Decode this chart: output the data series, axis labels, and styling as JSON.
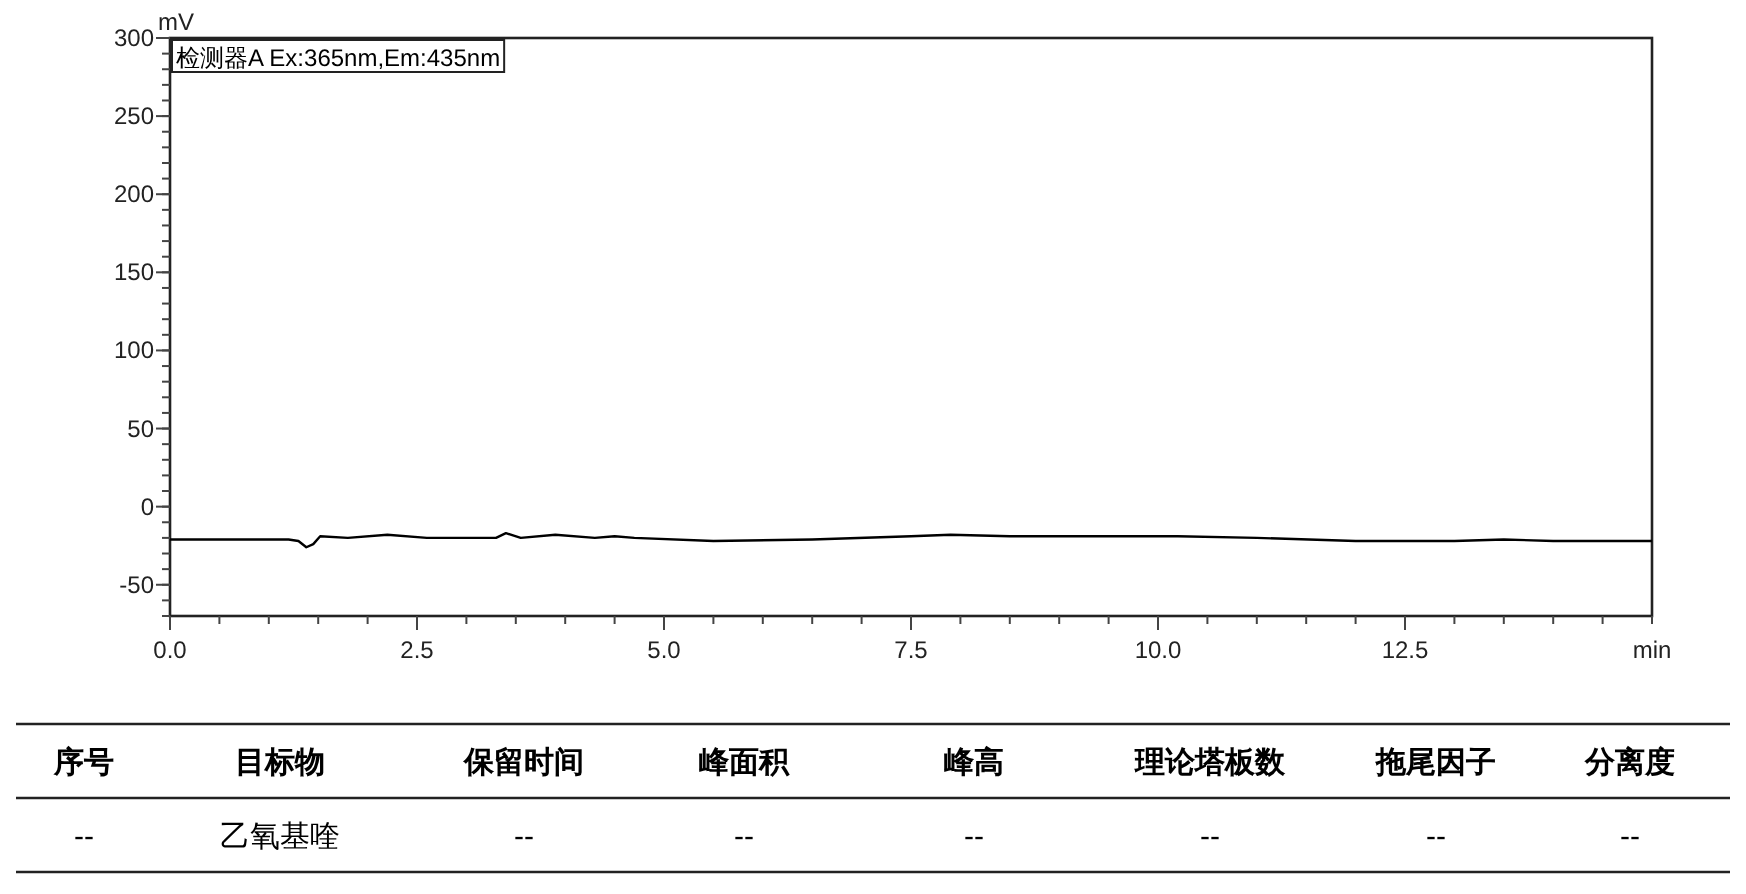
{
  "chart_data": {
    "type": "line",
    "xlabel": "min",
    "ylabel": "mV",
    "xlim": [
      0,
      15
    ],
    "ylim": [
      -70,
      300
    ],
    "xticks": [
      {
        "value": 0,
        "label": "0.0"
      },
      {
        "value": 2.5,
        "label": "2.5"
      },
      {
        "value": 5,
        "label": "5.0"
      },
      {
        "value": 7.5,
        "label": "7.5"
      },
      {
        "value": 10,
        "label": "10.0"
      },
      {
        "value": 12.5,
        "label": "12.5"
      }
    ],
    "yticks": [
      -50,
      0,
      50,
      100,
      150,
      200,
      250,
      300
    ],
    "grid": false,
    "legend": "top left",
    "marker": "none",
    "line_style": "solid",
    "series": [
      {
        "name": "检测器A Ex:365nm,Em:435nm",
        "color": "#000000",
        "x": [
          0,
          1.2,
          1.3,
          1.38,
          1.45,
          1.52,
          1.8,
          2.2,
          2.6,
          3.0,
          3.3,
          3.4,
          3.55,
          3.9,
          4.3,
          4.5,
          4.7,
          5.5,
          6.5,
          7.5,
          7.9,
          8.5,
          10.2,
          11.0,
          12.0,
          13.0,
          13.5,
          14.0,
          15
        ],
        "values": [
          -21,
          -21,
          -22,
          -26,
          -24,
          -19,
          -20,
          -18,
          -20,
          -20,
          -20,
          -17,
          -20,
          -18,
          -20,
          -19,
          -20,
          -22,
          -21,
          -19,
          -18,
          -19,
          -19,
          -20,
          -22,
          -22,
          -21,
          -22,
          -22
        ]
      }
    ],
    "annotations": [
      "序号",
      "目标物",
      "保留时间",
      "峰面积",
      "峰高",
      "理论塔板数",
      "拖尾因子",
      "分离度",
      "--",
      "乙氧基喹",
      "--",
      "--",
      "--",
      "--",
      "--",
      "--"
    ]
  }
}
